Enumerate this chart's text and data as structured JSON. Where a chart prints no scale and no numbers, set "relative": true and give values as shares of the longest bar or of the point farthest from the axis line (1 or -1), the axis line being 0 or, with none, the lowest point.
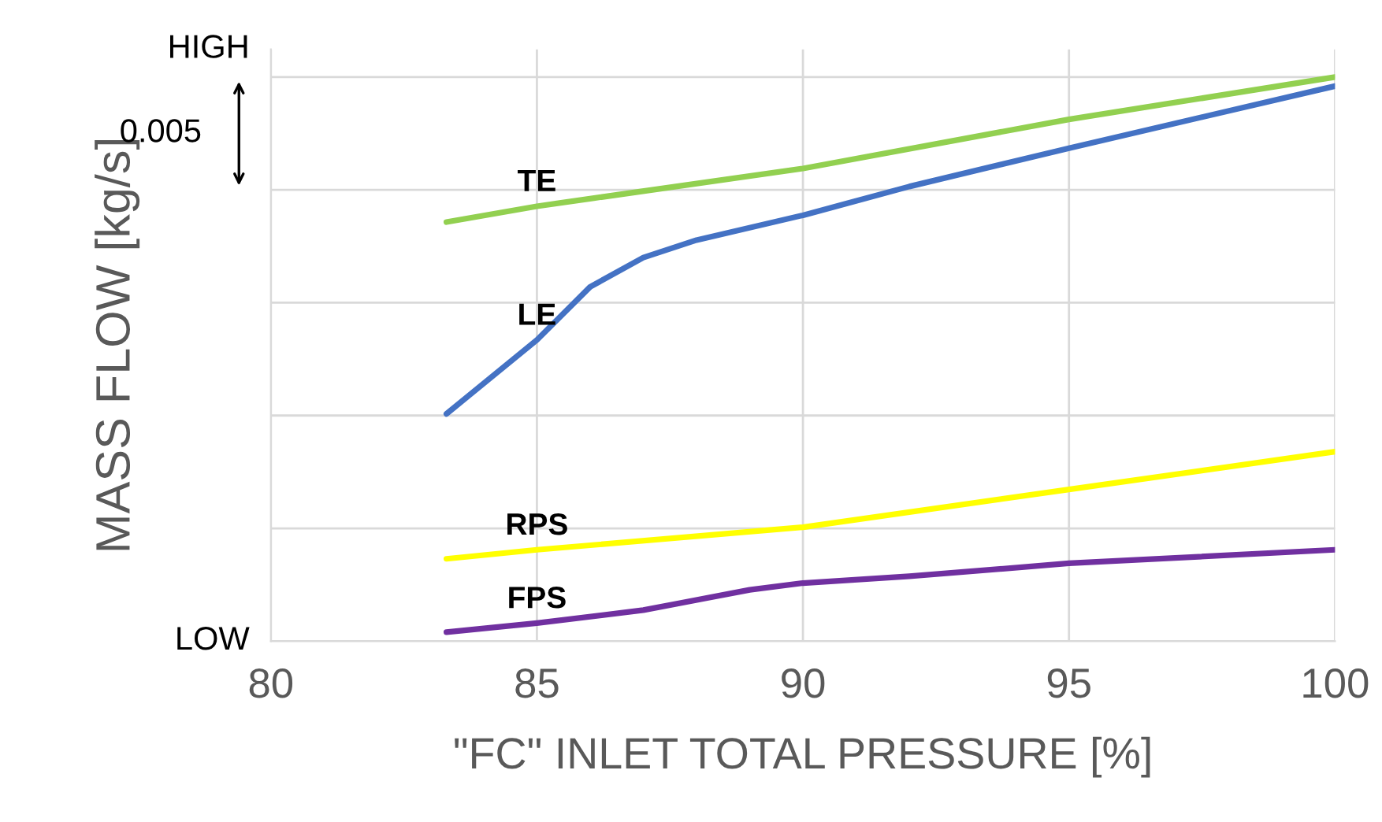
{
  "chart_data": {
    "type": "line",
    "relative": true,
    "xlabel": "\"FC\" INLET TOTAL PRESSURE [%]",
    "ylabel": "MASS FLOW [kg/s]",
    "xlim": [
      80,
      100
    ],
    "xticks": [
      80,
      85,
      90,
      95,
      100
    ],
    "grid": true,
    "legend": false,
    "marker": "none",
    "line_style": "solid",
    "annotations": [
      "LOW",
      "HIGH",
      "0.005"
    ],
    "series": [
      {
        "name": "TE",
        "color": "#92d050",
        "x": [
          83.3,
          85,
          90,
          95,
          100
        ],
        "values": [
          0.743,
          0.771,
          0.838,
          0.925,
          1
        ]
      },
      {
        "name": "LE",
        "color": "#4472c4",
        "x": [
          83.3,
          85,
          86,
          87,
          88,
          90,
          92,
          95,
          100
        ],
        "values": [
          0.403,
          0.534,
          0.628,
          0.68,
          0.711,
          0.755,
          0.806,
          0.874,
          0.984
        ]
      },
      {
        "name": "RPS",
        "color": "#ffff00",
        "x": [
          83.3,
          85,
          90,
          95,
          100
        ],
        "values": [
          0.146,
          0.162,
          0.202,
          0.269,
          0.336
        ]
      },
      {
        "name": "FPS",
        "color": "#7030a0",
        "x": [
          83.3,
          85,
          87,
          89,
          90,
          92,
          95,
          100
        ],
        "values": [
          0.016,
          0.032,
          0.055,
          0.091,
          0.103,
          0.115,
          0.138,
          0.162
        ]
      }
    ]
  }
}
